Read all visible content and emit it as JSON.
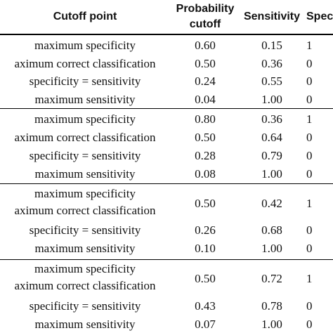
{
  "header": {
    "cutoff_point": "Cutoff point",
    "probability_cutoff_line1": "Probability",
    "probability_cutoff_line2": "cutoff",
    "sensitivity": "Sensitivity",
    "specificity": "Spec"
  },
  "groups": [
    {
      "rows": [
        {
          "labels": [
            "maximum specificity"
          ],
          "prob": "0.60",
          "sens": "0.15",
          "spec": "1"
        },
        {
          "labels": [
            "aximum correct classification"
          ],
          "prob": "0.50",
          "sens": "0.36",
          "spec": "0"
        },
        {
          "labels": [
            "specificity = sensitivity"
          ],
          "prob": "0.24",
          "sens": "0.55",
          "spec": "0"
        },
        {
          "labels": [
            "maximum sensitivity"
          ],
          "prob": "0.04",
          "sens": "1.00",
          "spec": "0"
        }
      ]
    },
    {
      "rows": [
        {
          "labels": [
            "maximum specificity"
          ],
          "prob": "0.80",
          "sens": "0.36",
          "spec": "1"
        },
        {
          "labels": [
            "aximum correct classification"
          ],
          "prob": "0.50",
          "sens": "0.64",
          "spec": "0"
        },
        {
          "labels": [
            "specificity = sensitivity"
          ],
          "prob": "0.28",
          "sens": "0.79",
          "spec": "0"
        },
        {
          "labels": [
            "maximum sensitivity"
          ],
          "prob": "0.08",
          "sens": "1.00",
          "spec": "0"
        }
      ]
    },
    {
      "rows": [
        {
          "labels": [
            "maximum specificity",
            "aximum correct classification"
          ],
          "prob": "0.50",
          "sens": "0.42",
          "spec": "1"
        },
        {
          "labels": [
            "specificity = sensitivity"
          ],
          "prob": "0.26",
          "sens": "0.68",
          "spec": "0"
        },
        {
          "labels": [
            "maximum sensitivity"
          ],
          "prob": "0.10",
          "sens": "1.00",
          "spec": "0"
        }
      ]
    },
    {
      "rows": [
        {
          "labels": [
            "maximum specificity",
            "aximum correct classification"
          ],
          "prob": "0.50",
          "sens": "0.72",
          "spec": "1"
        },
        {
          "labels": [
            "specificity = sensitivity"
          ],
          "prob": "0.43",
          "sens": "0.78",
          "spec": "0"
        },
        {
          "labels": [
            "maximum sensitivity"
          ],
          "prob": "0.07",
          "sens": "1.00",
          "spec": "0"
        }
      ]
    }
  ]
}
